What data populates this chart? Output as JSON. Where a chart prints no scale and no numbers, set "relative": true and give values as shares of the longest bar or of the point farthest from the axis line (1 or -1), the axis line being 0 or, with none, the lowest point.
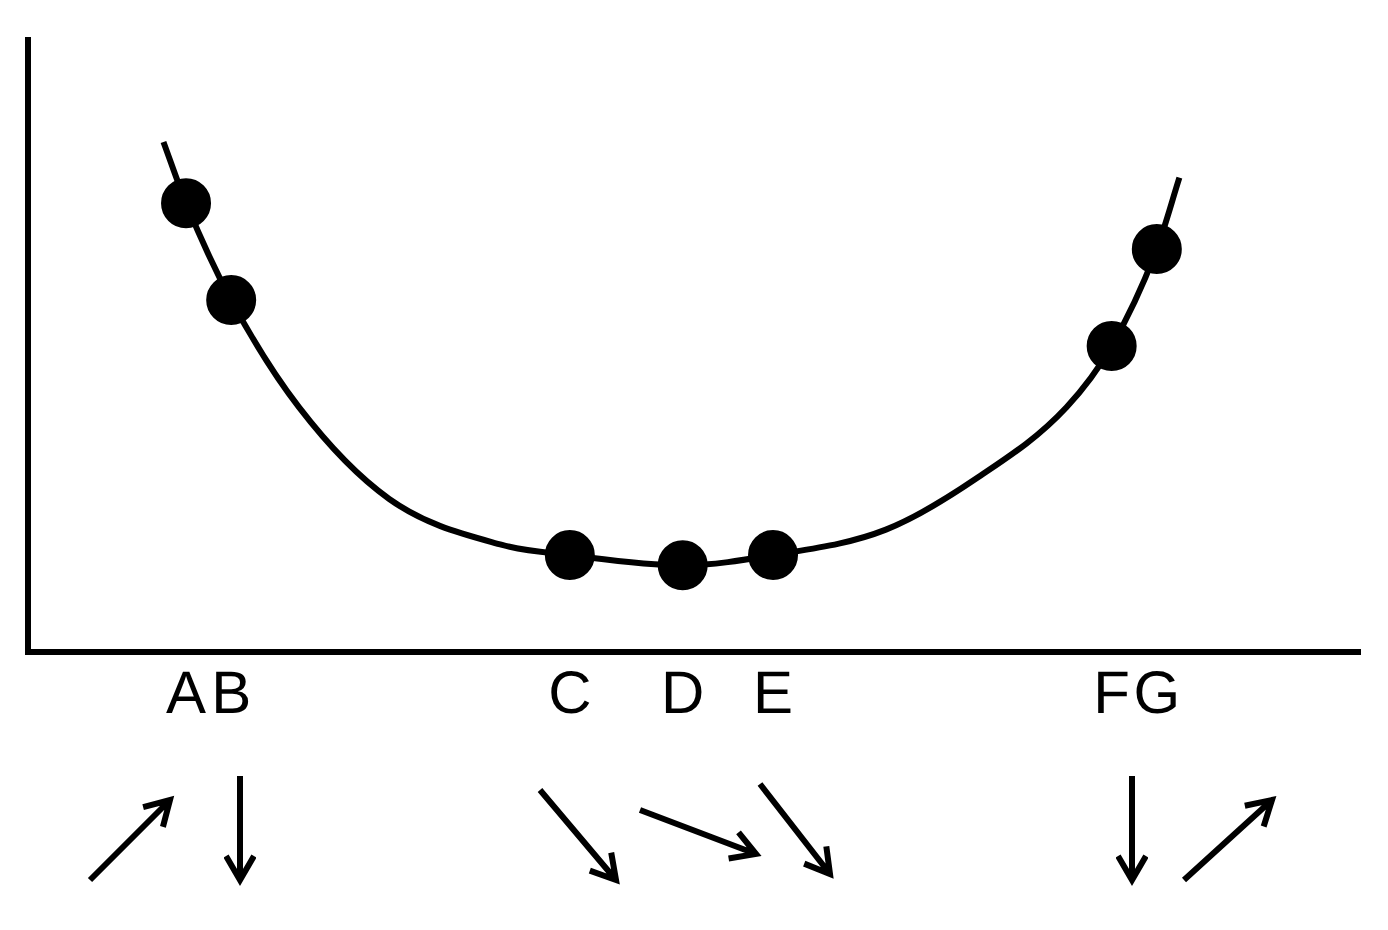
{
  "chart_data": {
    "type": "line",
    "relative": true,
    "categories": [
      null,
      null,
      null,
      null,
      null,
      null,
      null,
      "A",
      null,
      "B",
      null,
      null,
      null,
      null,
      null,
      null,
      null,
      null,
      null,
      null,
      null,
      null,
      null,
      null,
      "C",
      null,
      null,
      null,
      null,
      "D",
      null,
      null,
      null,
      "E",
      null,
      null,
      null,
      null,
      null,
      null,
      null,
      null,
      null,
      null,
      null,
      null,
      null,
      null,
      "F",
      null,
      "G",
      null,
      null,
      null,
      null,
      null,
      null,
      null,
      null,
      null
    ],
    "grid": false,
    "legend": false,
    "tick_labels": "x",
    "series": [
      {
        "color": "#000000",
        "marker": "none",
        "values": [
          null,
          null,
          null,
          null,
          null,
          null,
          1,
          0.88,
          null,
          0.69,
          null,
          null,
          0.48,
          null,
          null,
          null,
          0.3,
          null,
          null,
          null,
          null,
          0.21,
          null,
          null,
          0.19,
          null,
          null,
          null,
          null,
          0.17,
          null,
          null,
          null,
          0.19,
          null,
          null,
          null,
          null,
          0.24,
          null,
          null,
          null,
          0.34,
          null,
          null,
          null,
          0.48,
          null,
          0.6,
          null,
          0.79,
          0.93,
          null,
          null,
          null,
          null,
          null,
          null,
          null,
          null
        ]
      },
      {
        "type": "scatter",
        "color": "#000000",
        "marker": "circle",
        "values": [
          null,
          null,
          null,
          null,
          null,
          null,
          null,
          0.88,
          null,
          0.69,
          null,
          null,
          null,
          null,
          null,
          null,
          null,
          null,
          null,
          null,
          null,
          null,
          null,
          null,
          0.19,
          null,
          null,
          null,
          null,
          0.17,
          null,
          null,
          null,
          0.19,
          null,
          null,
          null,
          null,
          null,
          null,
          null,
          null,
          null,
          null,
          null,
          null,
          null,
          null,
          0.6,
          null,
          0.79,
          null,
          null,
          null,
          null,
          null,
          null,
          null,
          null,
          null
        ]
      }
    ]
  }
}
